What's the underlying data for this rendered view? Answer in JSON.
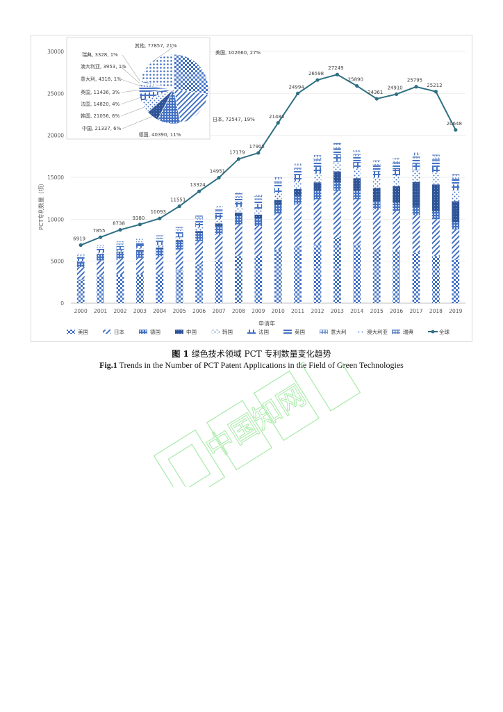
{
  "chart_data": {
    "type": "bar",
    "stacked": true,
    "xlabel": "申请年",
    "ylabel": "PCT专利数量（项）",
    "ylim": [
      0,
      30000
    ],
    "yticks": [
      0,
      5000,
      10000,
      15000,
      20000,
      25000,
      30000
    ],
    "categories": [
      "2000",
      "2001",
      "2002",
      "2003",
      "2004",
      "2005",
      "2006",
      "2007",
      "2008",
      "2009",
      "2010",
      "2011",
      "2012",
      "2013",
      "2014",
      "2015",
      "2016",
      "2017",
      "2018",
      "2019"
    ],
    "series": [
      {
        "name": "美国",
        "color": "#4472c4",
        "values": [
          2800,
          3300,
          3400,
          3400,
          3500,
          4000,
          4600,
          5000,
          5600,
          5600,
          6400,
          6800,
          7000,
          7800,
          7000,
          6400,
          6300,
          6000,
          5600,
          5200
        ]
      },
      {
        "name": "日本",
        "color": "#5b7fc4",
        "values": [
          1500,
          1800,
          1900,
          2000,
          2100,
          2400,
          2800,
          3200,
          3800,
          3600,
          4300,
          5000,
          5400,
          5600,
          5400,
          4800,
          4700,
          4500,
          4400,
          3600
        ]
      },
      {
        "name": "德国",
        "color": "#3f6ab0",
        "values": [
          600,
          700,
          750,
          800,
          850,
          900,
          950,
          1000,
          1000,
          900,
          1000,
          1000,
          1000,
          1000,
          1000,
          950,
          950,
          950,
          950,
          850
        ]
      },
      {
        "name": "中国",
        "color": "#2f5597",
        "values": [
          50,
          70,
          100,
          130,
          170,
          200,
          250,
          300,
          400,
          450,
          600,
          800,
          1000,
          1300,
          1500,
          1600,
          2000,
          3000,
          3200,
          2500
        ]
      },
      {
        "name": "韩国",
        "color": "#6f93d6",
        "values": [
          100,
          150,
          200,
          250,
          300,
          350,
          450,
          550,
          650,
          700,
          800,
          950,
          1050,
          1150,
          1150,
          1200,
          1300,
          1400,
          1450,
          1300
        ]
      },
      {
        "name": "法国",
        "color": "#4a6fb5",
        "values": [
          300,
          330,
          350,
          380,
          400,
          420,
          480,
          520,
          570,
          560,
          650,
          720,
          780,
          800,
          780,
          740,
          740,
          750,
          750,
          700
        ]
      },
      {
        "name": "英国",
        "color": "#5578be",
        "values": [
          250,
          270,
          290,
          300,
          330,
          350,
          400,
          450,
          500,
          480,
          560,
          620,
          670,
          680,
          670,
          640,
          640,
          650,
          650,
          600
        ]
      },
      {
        "name": "意大利",
        "color": "#7b9ad4",
        "values": [
          90,
          110,
          120,
          130,
          140,
          150,
          170,
          190,
          210,
          200,
          240,
          260,
          270,
          280,
          270,
          250,
          250,
          260,
          260,
          240
        ]
      },
      {
        "name": "澳大利亚",
        "color": "#9fb6e0",
        "values": [
          110,
          130,
          150,
          160,
          170,
          180,
          200,
          220,
          240,
          230,
          250,
          260,
          260,
          260,
          250,
          230,
          230,
          230,
          230,
          210
        ]
      },
      {
        "name": "瑞典",
        "color": "#5d7fbf",
        "values": [
          80,
          90,
          100,
          110,
          120,
          130,
          150,
          170,
          190,
          180,
          200,
          210,
          220,
          230,
          220,
          200,
          200,
          200,
          200,
          180
        ]
      }
    ],
    "line": {
      "name": "全球",
      "color": "#2e6f83",
      "values": [
        6919,
        7855,
        8738,
        9380,
        10093,
        11551,
        13324,
        14951,
        17179,
        17905,
        21483,
        24994,
        26598,
        27249,
        25890,
        24361,
        24910,
        25795,
        25212,
        20648
      ],
      "labels": [
        "6919",
        "7855",
        "8738",
        "9380",
        "10093",
        "11551",
        "13324",
        "14951",
        "17179",
        "17905",
        "21483",
        "24994",
        "26598",
        "27249",
        "25890",
        "24361",
        "24910",
        "25795",
        "25212",
        "20648"
      ]
    },
    "legend": [
      "美国",
      "日本",
      "德国",
      "中国",
      "韩国",
      "法国",
      "英国",
      "意大利",
      "澳大利亚",
      "瑞典",
      "全球"
    ],
    "legend_position": "bottom",
    "inset_pie": {
      "type": "pie",
      "slices": [
        {
          "name": "美国",
          "value": 102660,
          "pct": "27%",
          "label": "美国, 102660, 27%",
          "color": "#4472c4"
        },
        {
          "name": "日本",
          "value": 72547,
          "pct": "19%",
          "label": "日本, 72547, 19%",
          "color": "#5b7fc4"
        },
        {
          "name": "德国",
          "value": 40390,
          "pct": "11%",
          "label": "德国, 40390, 11%",
          "color": "#3f6ab0"
        },
        {
          "name": "中国",
          "value": 21337,
          "pct": "6%",
          "label": "中国, 21337, 6%",
          "color": "#2f5597"
        },
        {
          "name": "韩国",
          "value": 21056,
          "pct": "6%",
          "label": "韩国, 21056, 6%",
          "color": "#6f93d6"
        },
        {
          "name": "法国",
          "value": 14820,
          "pct": "4%",
          "label": "法国, 14820, 4%",
          "color": "#4a6fb5"
        },
        {
          "name": "英国",
          "value": 11436,
          "pct": "3%",
          "label": "英国, 11436, 3%",
          "color": "#5578be"
        },
        {
          "name": "意大利",
          "value": 4318,
          "pct": "1%",
          "label": "意大利, 4318, 1%",
          "color": "#7b9ad4"
        },
        {
          "name": "澳大利亚",
          "value": 3953,
          "pct": "1%",
          "label": "澳大利亚, 3953, 1%",
          "color": "#9fb6e0"
        },
        {
          "name": "瑞典",
          "value": 3328,
          "pct": "1%",
          "label": "瑞典, 3328, 1%",
          "color": "#5d7fbf"
        },
        {
          "name": "其他",
          "value": 77857,
          "pct": "21%",
          "label": "其他, 77857, 21%",
          "color": "#8fa9db"
        }
      ]
    }
  },
  "caption": {
    "cn_prefix": "图 1",
    "cn_text": "绿色技术领域 PCT 专利数量变化趋势",
    "en_prefix": "Fig.1",
    "en_text": "Trends in the Number of PCT Patent Applications in the Field of Green Technologies"
  },
  "watermark": {
    "text": "中国知网"
  }
}
